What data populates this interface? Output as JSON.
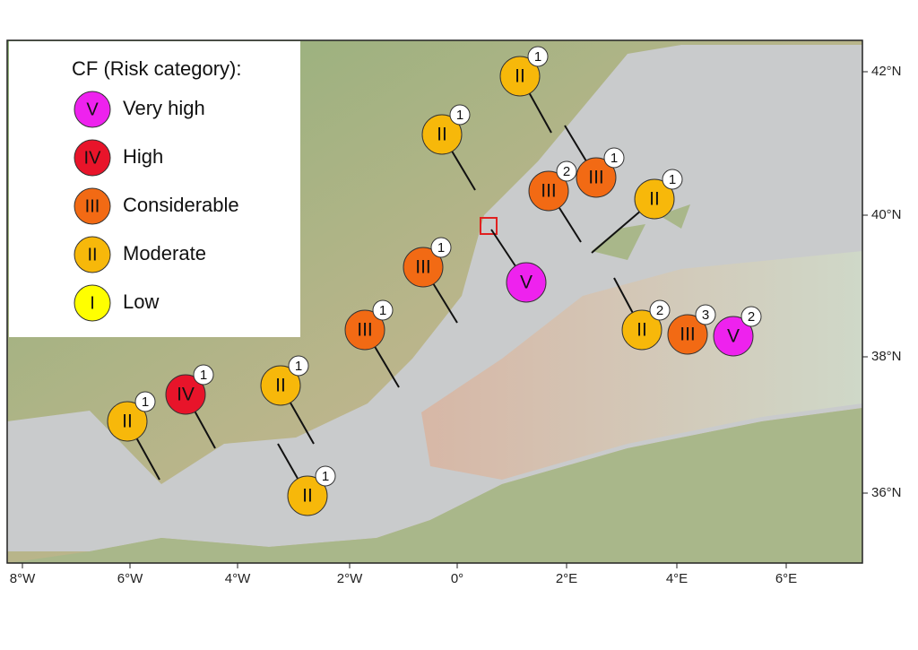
{
  "legend": {
    "title": "CF (Risk category):",
    "items": [
      {
        "symbol": "V",
        "label": "Very high",
        "color": "#ee22ee"
      },
      {
        "symbol": "IV",
        "label": "High",
        "color": "#e8142a"
      },
      {
        "symbol": "III",
        "label": "Considerable",
        "color": "#f26a14"
      },
      {
        "symbol": "II",
        "label": "Moderate",
        "color": "#f7b80a"
      },
      {
        "symbol": "I",
        "label": "Low",
        "color": "#ffff00"
      }
    ]
  },
  "x_axis": {
    "ticks": [
      "8°W",
      "6°W",
      "4°W",
      "2°W",
      "0°",
      "2°E",
      "4°E",
      "6°E"
    ]
  },
  "y_axis": {
    "ticks": [
      "36°N",
      "38°N",
      "40°N",
      "42°N"
    ]
  },
  "markers": [
    {
      "category": "II",
      "count": "1"
    },
    {
      "category": "II",
      "count": "1"
    },
    {
      "category": "III",
      "count": "2"
    },
    {
      "category": "III",
      "count": "1"
    },
    {
      "category": "II",
      "count": "1"
    },
    {
      "category": "V"
    },
    {
      "category": "III",
      "count": "1"
    },
    {
      "category": "III",
      "count": "1"
    },
    {
      "category": "II",
      "count": "2"
    },
    {
      "category": "III",
      "count": "3"
    },
    {
      "category": "V",
      "count": "2"
    },
    {
      "category": "IV",
      "count": "1"
    },
    {
      "category": "II",
      "count": "1"
    },
    {
      "category": "II",
      "count": "1"
    },
    {
      "category": "II",
      "count": "1"
    }
  ]
}
